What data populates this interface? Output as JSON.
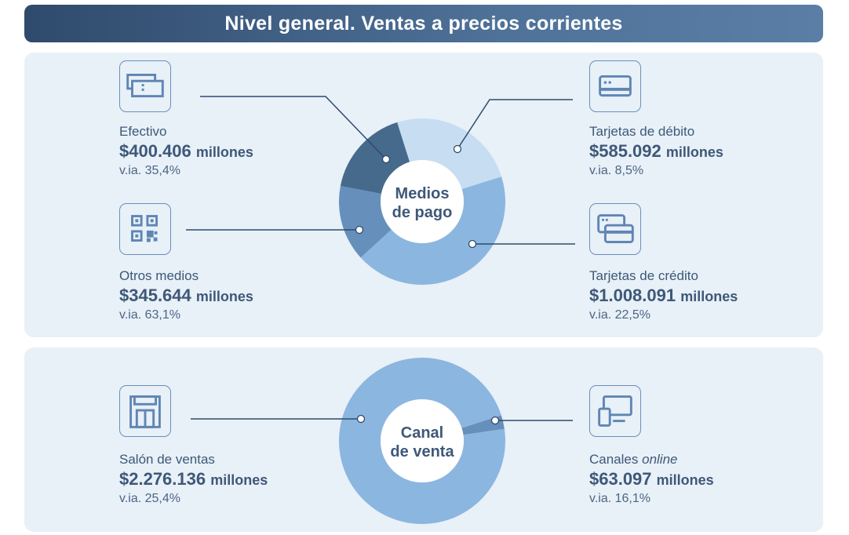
{
  "title": "Nivel general. Ventas a precios corrientes",
  "colors": {
    "dark": "#466a8c",
    "steel": "#6690bb",
    "mid": "#8bb6e0",
    "light": "#c7ddf1",
    "line": "#2f4a6c"
  },
  "chart_data": [
    {
      "type": "pie",
      "title": "Medios de pago",
      "center_label": [
        "Medios",
        "de pago"
      ],
      "unit": "millones",
      "slices": [
        {
          "name": "Tarjetas de débito",
          "value": 585092,
          "value_label": "$585.092",
          "yoy": "v.ia. 8,5%",
          "color": "#c7ddf1",
          "icon": "debit-card-icon"
        },
        {
          "name": "Tarjetas de crédito",
          "value": 1008091,
          "value_label": "$1.008.091",
          "yoy": "v.ia. 22,5%",
          "color": "#8bb6e0",
          "icon": "credit-cards-icon"
        },
        {
          "name": "Otros medios",
          "value": 345644,
          "value_label": "$345.644",
          "yoy": "v.ia. 63,1%",
          "color": "#6690bb",
          "icon": "qr-code-icon"
        },
        {
          "name": "Efectivo",
          "value": 400406,
          "value_label": "$400.406",
          "yoy": "v.ia. 35,4%",
          "color": "#466a8c",
          "icon": "cash-icon"
        }
      ]
    },
    {
      "type": "pie",
      "title": "Canal de venta",
      "center_label": [
        "Canal",
        "de venta"
      ],
      "unit": "millones",
      "slices": [
        {
          "name": "Canales online",
          "value": 63097,
          "value_label": "$63.097",
          "yoy": "v.ia. 16,1%",
          "color": "#6690bb",
          "icon": "computer-icon"
        },
        {
          "name": "Salón de ventas",
          "value": 2276136,
          "value_label": "$2.276.136",
          "yoy": "v.ia. 25,4%",
          "color": "#8bb6e0",
          "icon": "store-icon"
        }
      ]
    }
  ],
  "labels": {
    "canales": "Canales",
    "online": "online",
    "millones": "millones"
  }
}
